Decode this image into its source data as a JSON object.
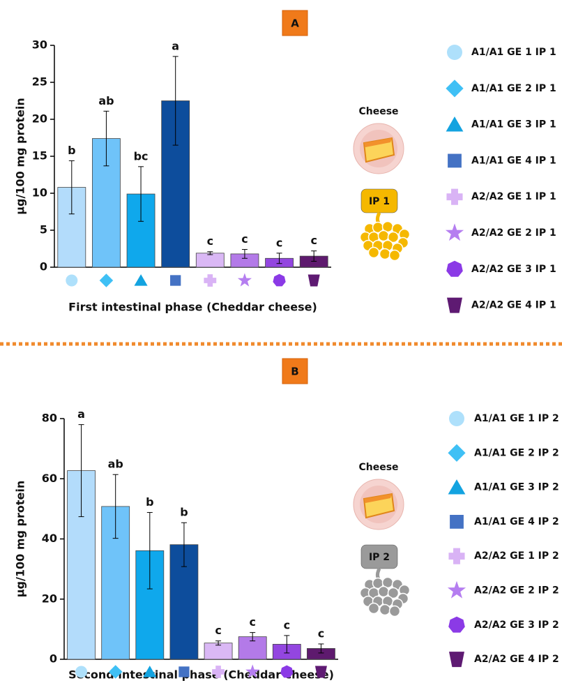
{
  "chart_data": [
    {
      "type": "bar",
      "badge": "A",
      "ylabel": "µg/100 mg protein",
      "xlabel": "First intestinal phase (Cheddar cheese)",
      "ylim": [
        0,
        30
      ],
      "yticks": [
        0,
        5,
        10,
        15,
        20,
        25,
        30
      ],
      "illustration": {
        "label": "Cheese",
        "tag": "IP 1",
        "color": "#f5b800"
      },
      "series": [
        {
          "name": "A1/A1 GE 1 IP 1",
          "color": "#b3dcfb",
          "marker_color": "#aee0fb",
          "marker": "circle",
          "values": [
            10.8
          ],
          "errors": [
            3.6
          ],
          "letters": [
            "b"
          ]
        },
        {
          "name": "A1/A1 GE 2 IP 1",
          "color": "#6fc3f9",
          "marker_color": "#3fc0f5",
          "marker": "diamond",
          "values": [
            17.4
          ],
          "errors": [
            3.7
          ],
          "letters": [
            "ab"
          ]
        },
        {
          "name": "A1/A1 GE 3 IP 1",
          "color": "#0fa8ec",
          "marker_color": "#13a3e0",
          "marker": "triangle",
          "values": [
            9.9
          ],
          "errors": [
            3.7
          ],
          "letters": [
            "bc"
          ]
        },
        {
          "name": "A1/A1 GE 4 IP 1",
          "color": "#0d4d9c",
          "marker_color": "#4472c4",
          "marker": "square",
          "values": [
            22.5
          ],
          "errors": [
            6.0
          ],
          "letters": [
            "a"
          ]
        },
        {
          "name": "A2/A2 GE 1 IP 1",
          "color": "#dab8f5",
          "marker_color": "#d9b3f5",
          "marker": "cross",
          "values": [
            1.9
          ],
          "errors": [
            0.2
          ],
          "letters": [
            "c"
          ]
        },
        {
          "name": "A2/A2 GE 2 IP 1",
          "color": "#b37ae8",
          "marker_color": "#b57ef0",
          "marker": "star",
          "values": [
            1.8
          ],
          "errors": [
            0.6
          ],
          "letters": [
            "c"
          ]
        },
        {
          "name": "A2/A2 GE 3 IP 1",
          "color": "#9346e0",
          "marker_color": "#8b3ae6",
          "marker": "heptagon",
          "values": [
            1.2
          ],
          "errors": [
            0.7
          ],
          "letters": [
            "c"
          ]
        },
        {
          "name": "A2/A2 GE 4 IP 1",
          "color": "#5e1a6e",
          "marker_color": "#5e1a72",
          "marker": "trapezoid",
          "values": [
            1.5
          ],
          "errors": [
            0.7
          ],
          "letters": [
            "c"
          ]
        }
      ]
    },
    {
      "type": "bar",
      "badge": "B",
      "ylabel": "µg/100 mg protein",
      "xlabel": "Second intestinal phase (Cheddar cheese)",
      "ylim": [
        0,
        80
      ],
      "yticks": [
        0,
        20,
        40,
        60,
        80
      ],
      "illustration": {
        "label": "Cheese",
        "tag": "IP 2",
        "color": "#9a9a9a"
      },
      "series": [
        {
          "name": "A1/A1 GE 1 IP 2",
          "color": "#b3dcfb",
          "marker_color": "#aee0fb",
          "marker": "circle",
          "values": [
            62.7
          ],
          "errors": [
            15.3
          ],
          "letters": [
            "a"
          ]
        },
        {
          "name": "A1/A1 GE 2 IP 2",
          "color": "#6fc3f9",
          "marker_color": "#3fc0f5",
          "marker": "diamond",
          "values": [
            50.8
          ],
          "errors": [
            10.6
          ],
          "letters": [
            "ab"
          ]
        },
        {
          "name": "A1/A1 GE 3 IP 2",
          "color": "#0fa8ec",
          "marker_color": "#13a3e0",
          "marker": "triangle",
          "values": [
            36.1
          ],
          "errors": [
            12.7
          ],
          "letters": [
            "b"
          ]
        },
        {
          "name": "A1/A1 GE 4 IP 2",
          "color": "#0d4d9c",
          "marker_color": "#4472c4",
          "marker": "square",
          "values": [
            38.1
          ],
          "errors": [
            7.3
          ],
          "letters": [
            "b"
          ]
        },
        {
          "name": "A2/A2 GE 1 IP 2",
          "color": "#dab8f5",
          "marker_color": "#d9b3f5",
          "marker": "cross",
          "values": [
            5.4
          ],
          "errors": [
            0.7
          ],
          "letters": [
            "c"
          ]
        },
        {
          "name": "A2/A2 GE 2 IP 2",
          "color": "#b37ae8",
          "marker_color": "#b57ef0",
          "marker": "star",
          "values": [
            7.5
          ],
          "errors": [
            1.4
          ],
          "letters": [
            "c"
          ]
        },
        {
          "name": "A2/A2 GE 3 IP 2",
          "color": "#9346e0",
          "marker_color": "#8b3ae6",
          "marker": "heptagon",
          "values": [
            5.0
          ],
          "errors": [
            2.9
          ],
          "letters": [
            "c"
          ]
        },
        {
          "name": "A2/A2 GE 4 IP 2",
          "color": "#5e1a6e",
          "marker_color": "#5e1a72",
          "marker": "trapezoid",
          "values": [
            3.6
          ],
          "errors": [
            1.5
          ],
          "letters": [
            "c"
          ]
        }
      ]
    }
  ]
}
